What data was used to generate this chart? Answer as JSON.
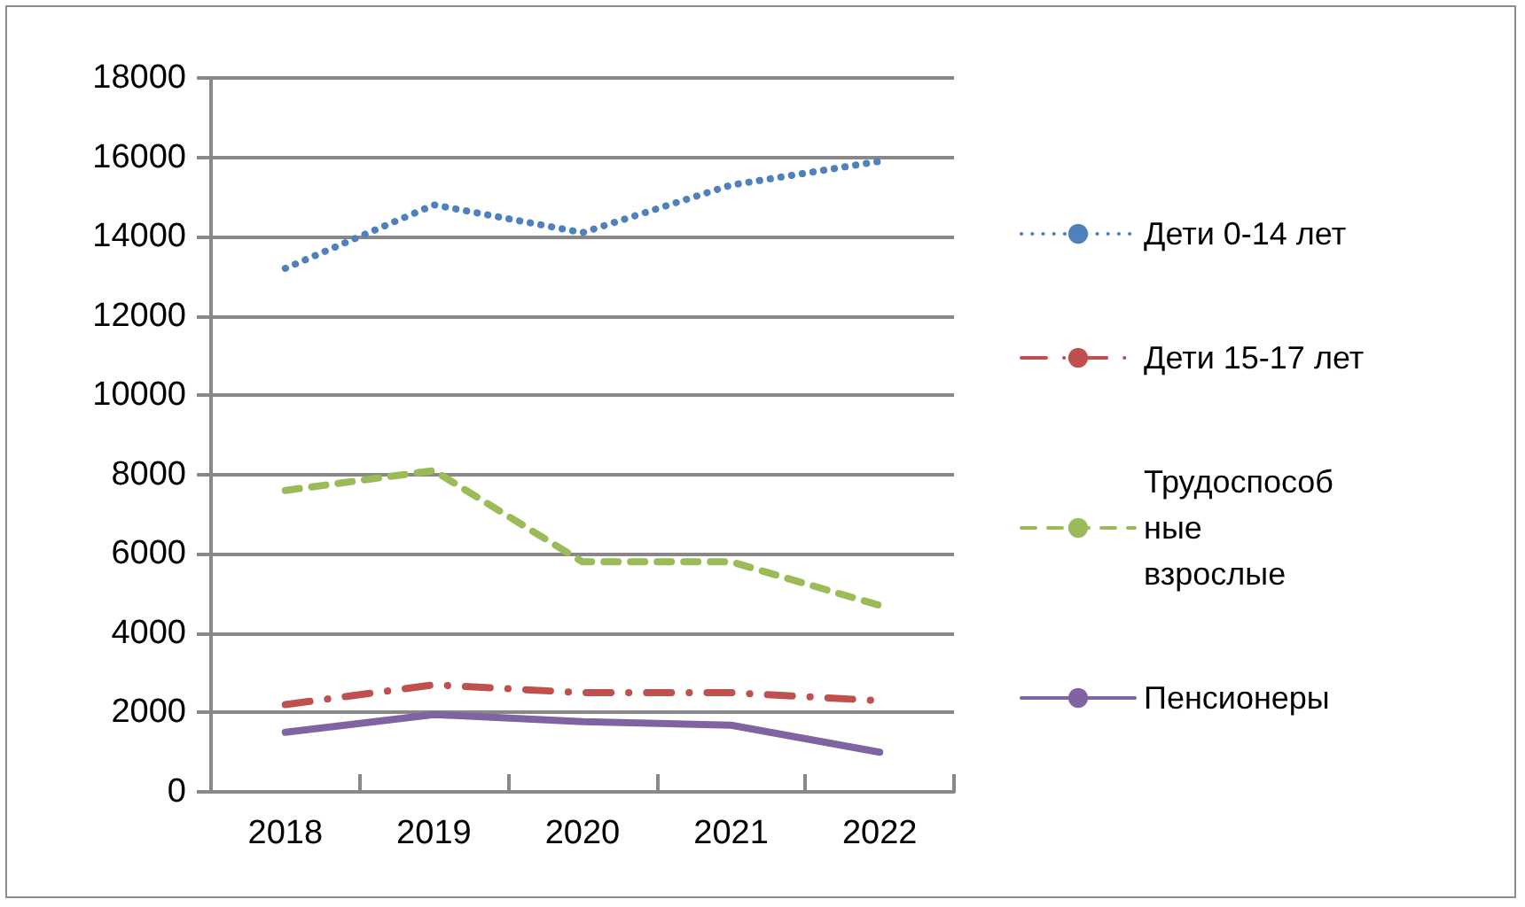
{
  "chart_data": {
    "type": "line",
    "categories": [
      "2018",
      "2019",
      "2020",
      "2021",
      "2022"
    ],
    "series": [
      {
        "name": "Дети 0-14 лет",
        "color": "#4f81bd",
        "line_style": "dotted",
        "values": [
          13200,
          14800,
          14100,
          15300,
          15900
        ]
      },
      {
        "name": "Дети 15-17 лет",
        "color": "#c0504d",
        "line_style": "dash-dot",
        "values": [
          2200,
          2700,
          2500,
          2500,
          2300
        ]
      },
      {
        "name": "Трудоспособные взрослые",
        "color": "#9bbb59",
        "line_style": "dashed",
        "values": [
          7600,
          8100,
          5800,
          5800,
          4700
        ]
      },
      {
        "name": "Пенсионеры",
        "color": "#8064a2",
        "line_style": "solid",
        "values": [
          1500,
          1950,
          1770,
          1680,
          1000
        ]
      }
    ],
    "ylim": [
      0,
      18000
    ],
    "yticks": [
      0,
      2000,
      4000,
      6000,
      8000,
      10000,
      12000,
      14000,
      16000,
      18000
    ],
    "grid": "y",
    "legend": "right",
    "marker": "none"
  }
}
